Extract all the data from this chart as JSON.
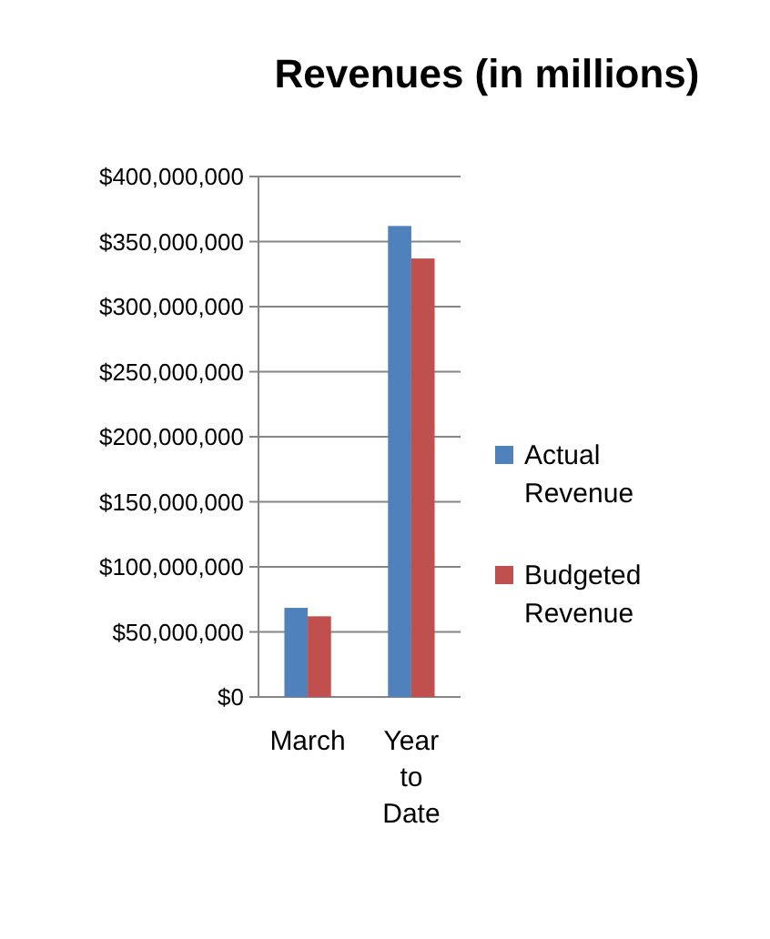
{
  "chart_data": {
    "type": "bar",
    "title": "Revenues (in millions)",
    "categories": [
      "March",
      "Year to Date"
    ],
    "series": [
      {
        "name": "Actual Revenue",
        "color": "#4f81bd",
        "values": [
          68500000,
          362000000
        ]
      },
      {
        "name": "Budgeted Revenue",
        "color": "#c0504d",
        "values": [
          62000000,
          337000000
        ]
      }
    ],
    "ylim": [
      0,
      400000000
    ],
    "yticks": [
      {
        "value": 0,
        "label": "$0"
      },
      {
        "value": 50000000,
        "label": "$50,000,000"
      },
      {
        "value": 100000000,
        "label": "$100,000,000"
      },
      {
        "value": 150000000,
        "label": "$150,000,000"
      },
      {
        "value": 200000000,
        "label": "$200,000,000"
      },
      {
        "value": 250000000,
        "label": "$250,000,000"
      },
      {
        "value": 300000000,
        "label": "$300,000,000"
      },
      {
        "value": 350000000,
        "label": "$350,000,000"
      },
      {
        "value": 400000000,
        "label": "$400,000,000"
      }
    ],
    "grid": "y",
    "legend": "right"
  }
}
